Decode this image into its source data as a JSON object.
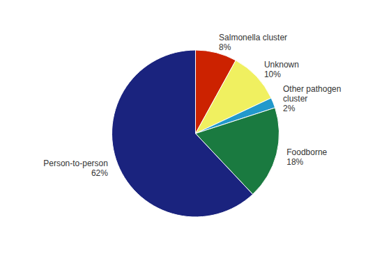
{
  "chart_data": {
    "type": "pie",
    "categories": [
      "Salmonella  cluster",
      "Unknown",
      "Other pathogen\ncluster",
      "Foodborne",
      "Person-to-person"
    ],
    "values": [
      8,
      10,
      2,
      18,
      62
    ],
    "value_labels": [
      "8%",
      "10%",
      "2%",
      "18%",
      "62%"
    ],
    "colors": [
      "#cc2200",
      "#f0f060",
      "#2299cc",
      "#1a7a40",
      "#1a237e"
    ]
  }
}
